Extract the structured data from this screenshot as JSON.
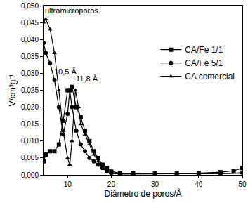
{
  "chart_data": {
    "type": "line",
    "x_label": "Diâmetro de poros/Å",
    "y_label": "V/cm³g⁻¹",
    "xlim": [
      4.5,
      50
    ],
    "xticks": [
      10,
      20,
      30,
      40,
      50
    ],
    "ylim": [
      0,
      0.05
    ],
    "yticks": [
      {
        "value": 0,
        "label": "0,000"
      },
      {
        "value": 0.005,
        "label": "0,005"
      },
      {
        "value": 0.01,
        "label": "0,010"
      },
      {
        "value": 0.015,
        "label": "0,015"
      },
      {
        "value": 0.02,
        "label": "0,020"
      },
      {
        "value": 0.025,
        "label": "0,025"
      },
      {
        "value": 0.03,
        "label": "0,030"
      },
      {
        "value": 0.035,
        "label": "0,035"
      },
      {
        "value": 0.04,
        "label": "0,040"
      },
      {
        "value": 0.045,
        "label": "0,045"
      },
      {
        "value": 0.05,
        "label": "0,050"
      }
    ],
    "grid": false,
    "legend": "upper right",
    "series": [
      {
        "name": "CA/Fe 1/1",
        "color": "#000000",
        "marker": "square",
        "x": [
          4.5,
          5,
          6,
          7,
          8,
          9,
          10,
          10.5,
          11,
          12,
          13,
          14,
          15,
          16,
          17,
          18,
          19,
          20,
          22,
          25,
          30,
          35,
          40,
          45,
          48,
          50
        ],
        "values": [
          0.004,
          0.006,
          0.007,
          0.007,
          0.009,
          0.016,
          0.025,
          0.025,
          0.026,
          0.02,
          0.017,
          0.013,
          0.01,
          0.007,
          0.005,
          0.003,
          0.002,
          0.001,
          0.0005,
          0.0005,
          0.0004,
          0.0004,
          0.0005,
          0.0008,
          0.0012,
          0.002
        ]
      },
      {
        "name": "CA/Fe 5/1",
        "color": "#000000",
        "marker": "circle",
        "x": [
          4.5,
          5,
          6,
          7,
          8,
          9,
          10,
          10.5,
          11,
          12,
          13,
          14,
          15,
          16,
          17,
          18,
          19,
          20,
          22,
          25,
          30,
          35,
          40,
          45,
          50
        ],
        "values": [
          0.039,
          0.036,
          0.033,
          0.028,
          0.02,
          0.012,
          0.018,
          0.025,
          0.02,
          0.013,
          0.009,
          0.007,
          0.005,
          0.004,
          0.003,
          0.002,
          0.001,
          0.0005,
          0.0003,
          0.0003,
          0.0003,
          0.0003,
          0.0003,
          0.0004,
          0.0006
        ]
      },
      {
        "name": "CA comercial",
        "color": "#000000",
        "marker": "triangle-up",
        "x": [
          4.5,
          5,
          6,
          7,
          8,
          9,
          10,
          10.5,
          11,
          11.8,
          12.5,
          13,
          14,
          15,
          16,
          17,
          18,
          19,
          20,
          22,
          25,
          30,
          35,
          40,
          45,
          50
        ],
        "values": [
          0.045,
          0.046,
          0.043,
          0.036,
          0.025,
          0.013,
          0.005,
          0.003,
          0.01,
          0.025,
          0.02,
          0.015,
          0.012,
          0.009,
          0.006,
          0.004,
          0.002,
          0.001,
          0.0005,
          0.0003,
          0.0003,
          0.0003,
          0.0003,
          0.0003,
          0.0004,
          0.0005
        ]
      }
    ],
    "annotations": [
      {
        "text": "ultramicroporos",
        "x": 11,
        "y": 0.0485
      },
      {
        "text": "10,5 Å",
        "x": 9.5,
        "y": 0.0305
      },
      {
        "text": "11,8 Å",
        "x": 14.5,
        "y": 0.0285
      }
    ]
  }
}
